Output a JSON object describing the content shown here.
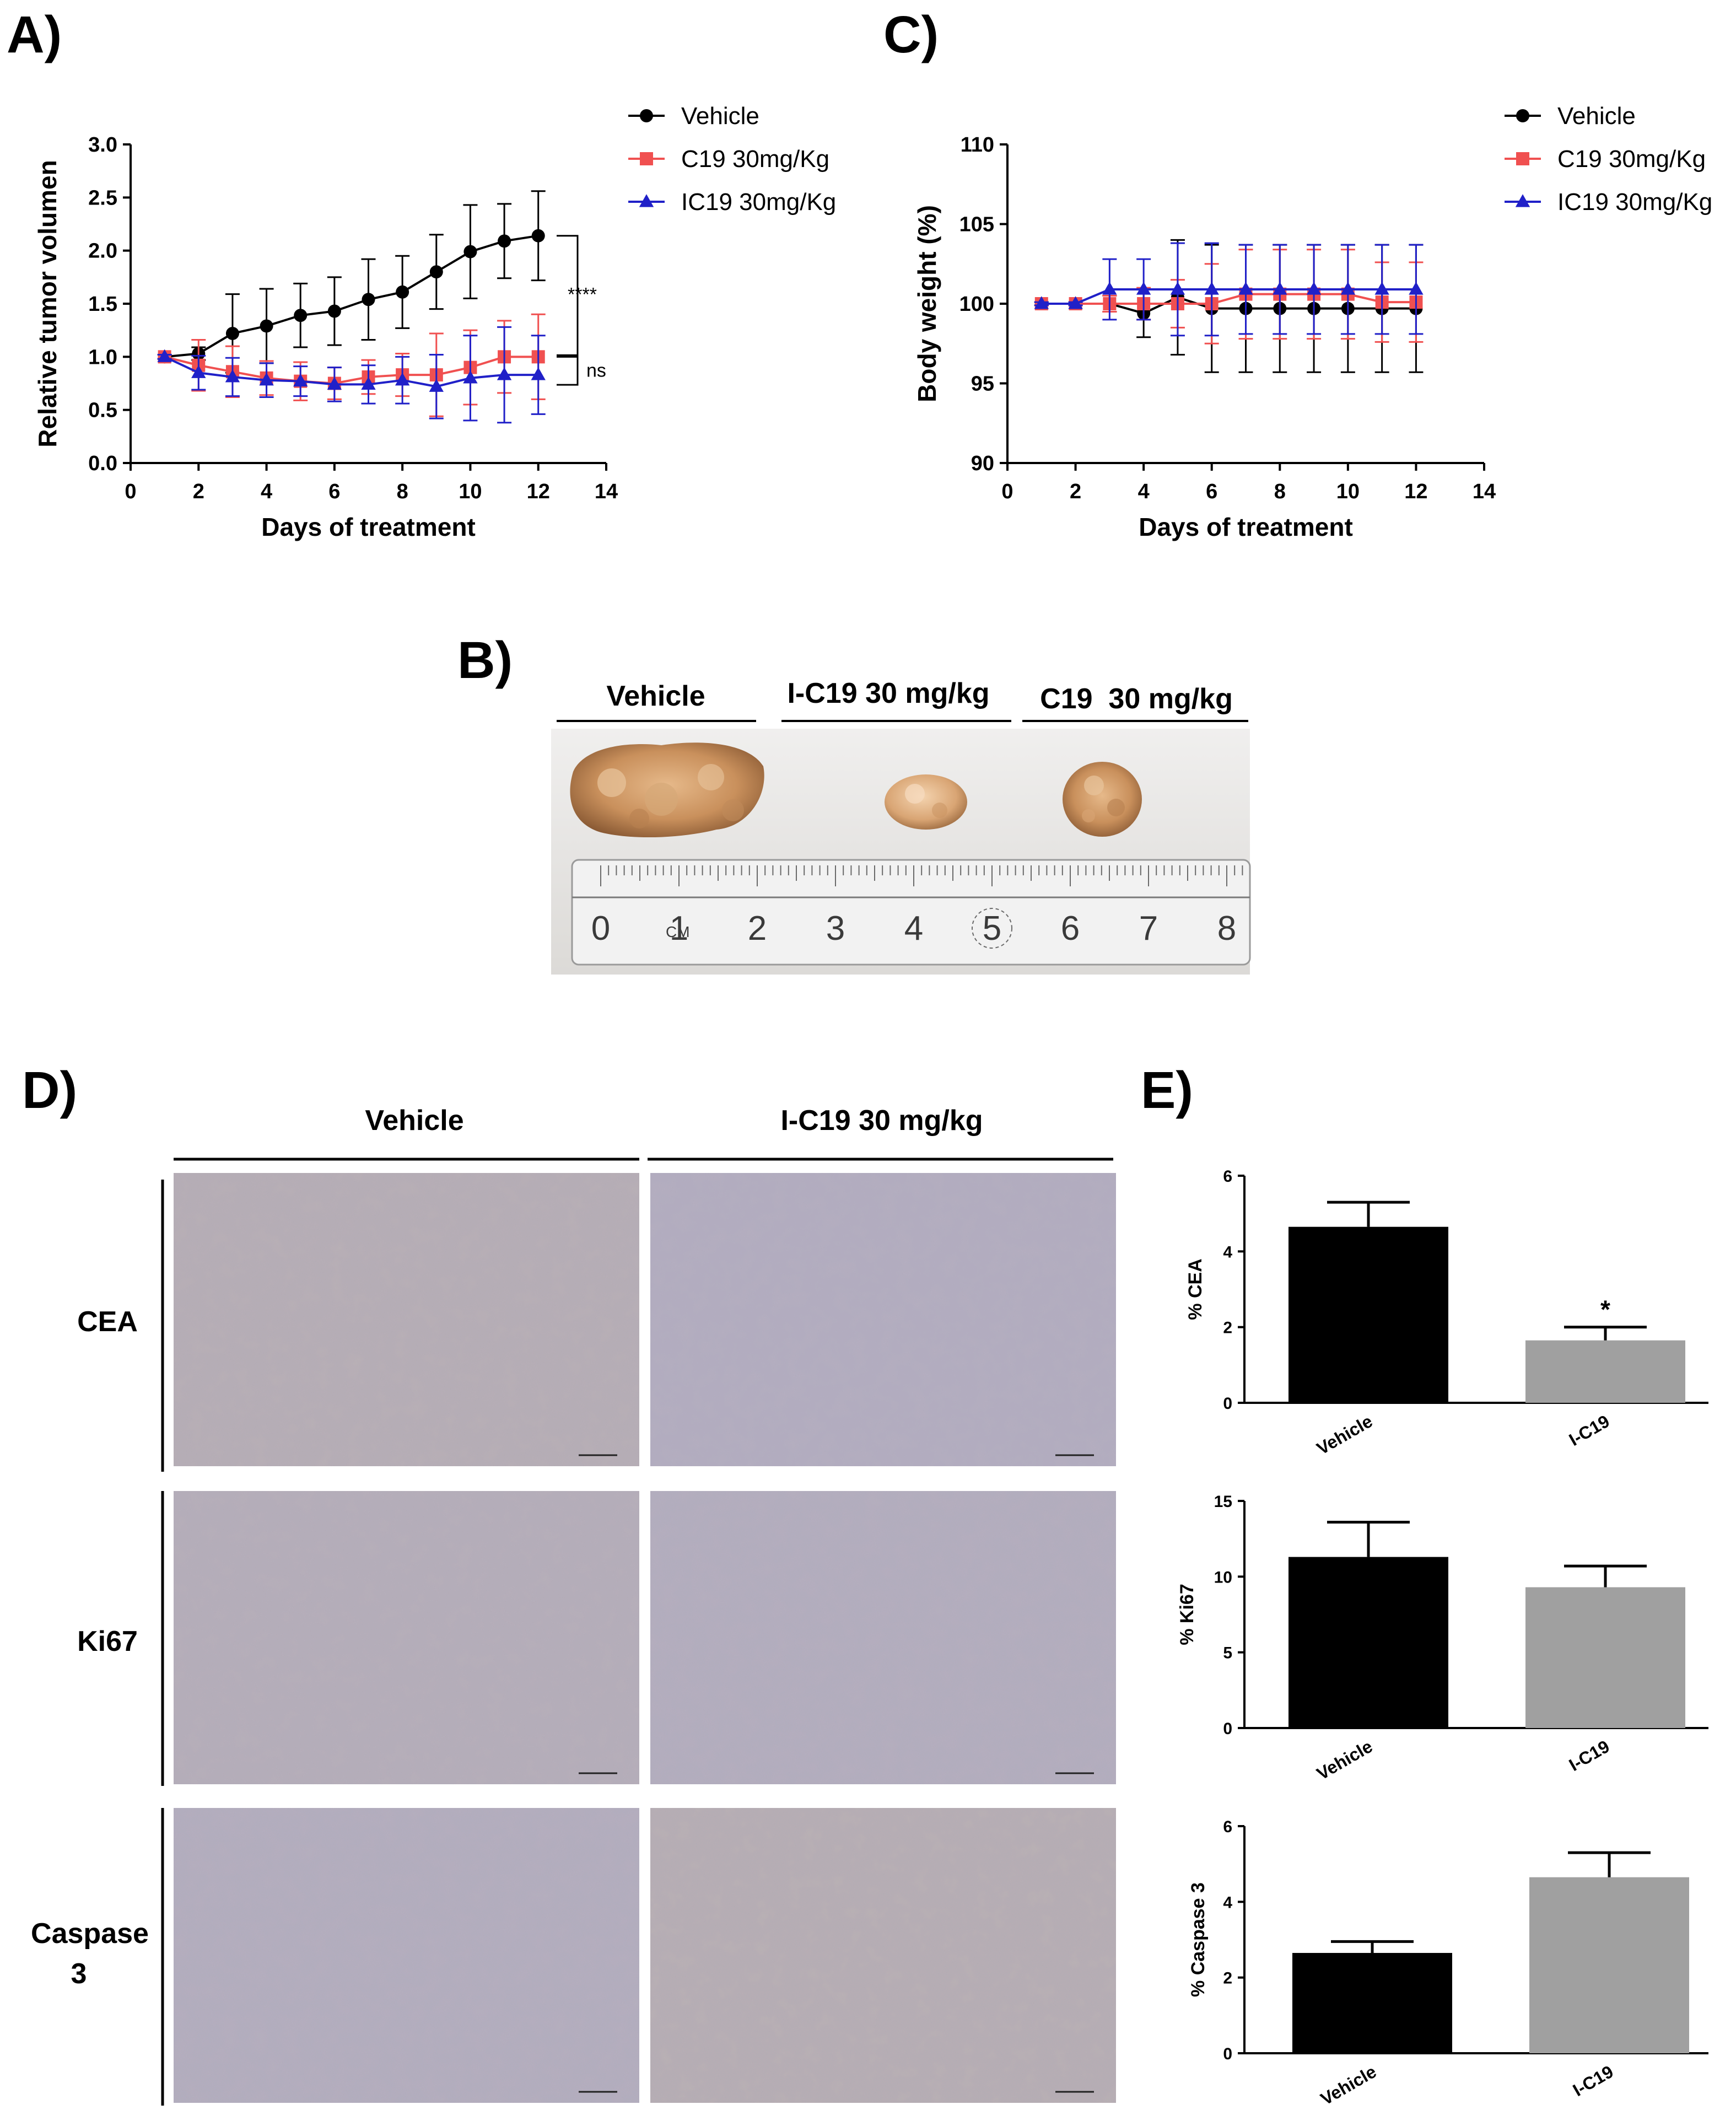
{
  "panels": {
    "a": "A)",
    "b": "B)",
    "c": "C)",
    "d": "D)",
    "e": "E)"
  },
  "colors": {
    "vehicle": "#000000",
    "c19": "#f05050",
    "ic19": "#2020c8",
    "bar_vehicle": "#000000",
    "bar_ic19": "#a0a0a0"
  },
  "photo_b": {
    "headers": [
      "Vehicle",
      "I-C19 30 mg/kg",
      "C19  30 mg/kg"
    ],
    "ruler_numbers": [
      "0",
      "1",
      "2",
      "3",
      "4",
      "5",
      "6",
      "7",
      "8"
    ],
    "ruler_unit": "CM"
  },
  "panel_d": {
    "col_headers": [
      "Vehicle",
      "I-C19 30 mg/kg"
    ],
    "row_labels": [
      "CEA",
      "Ki67",
      "Caspase",
      "3"
    ]
  },
  "chart_data": [
    {
      "id": "A",
      "type": "line",
      "xlabel": "Days of treatment",
      "ylabel": "Relative tumor volumen",
      "xlim": [
        0,
        14
      ],
      "ylim": [
        0,
        3.0
      ],
      "xticks": [
        "0",
        "2",
        "4",
        "6",
        "8",
        "10",
        "12",
        "14"
      ],
      "yticks": [
        "0.0",
        "0.5",
        "1.0",
        "1.5",
        "2.0",
        "2.5",
        "3.0"
      ],
      "legend": "top-right",
      "x": [
        1,
        2,
        3,
        4,
        5,
        6,
        7,
        8,
        9,
        10,
        11,
        12
      ],
      "series": [
        {
          "name": "Vehicle",
          "marker": "circle",
          "color": "#000000",
          "values": [
            1.0,
            1.03,
            1.22,
            1.29,
            1.39,
            1.43,
            1.54,
            1.61,
            1.8,
            1.99,
            2.09,
            2.14
          ],
          "errors": [
            0.02,
            0.06,
            0.37,
            0.35,
            0.3,
            0.32,
            0.38,
            0.34,
            0.35,
            0.44,
            0.35,
            0.42
          ]
        },
        {
          "name": "C19 30mg/Kg",
          "marker": "square",
          "color": "#f05050",
          "values": [
            1.0,
            0.92,
            0.86,
            0.8,
            0.77,
            0.75,
            0.81,
            0.83,
            0.83,
            0.9,
            1.0,
            1.0
          ],
          "errors": [
            0.02,
            0.24,
            0.24,
            0.16,
            0.18,
            0.15,
            0.16,
            0.2,
            0.39,
            0.35,
            0.34,
            0.4
          ]
        },
        {
          "name": "IC19 30mg/Kg",
          "marker": "triangle",
          "color": "#2020c8",
          "values": [
            1.0,
            0.85,
            0.81,
            0.78,
            0.77,
            0.74,
            0.74,
            0.78,
            0.72,
            0.8,
            0.83,
            0.83
          ],
          "errors": [
            0.02,
            0.16,
            0.18,
            0.16,
            0.14,
            0.16,
            0.18,
            0.22,
            0.3,
            0.4,
            0.45,
            0.37
          ]
        }
      ],
      "annotations": [
        "****",
        "ns"
      ]
    },
    {
      "id": "C",
      "type": "line",
      "xlabel": "Days of treatment",
      "ylabel": "Body weight (%)",
      "xlim": [
        0,
        14
      ],
      "ylim": [
        90,
        110
      ],
      "xticks": [
        "0",
        "2",
        "4",
        "6",
        "8",
        "10",
        "12",
        "14"
      ],
      "yticks": [
        "90",
        "95",
        "100",
        "105",
        "110"
      ],
      "legend": "top-right",
      "x": [
        1,
        2,
        3,
        4,
        5,
        6,
        7,
        8,
        9,
        10,
        11,
        12
      ],
      "series": [
        {
          "name": "Vehicle",
          "marker": "circle",
          "color": "#000000",
          "values": [
            100,
            100,
            100,
            99.4,
            100.4,
            99.7,
            99.7,
            99.7,
            99.7,
            99.7,
            99.7,
            99.7
          ],
          "errors": [
            0.1,
            0.1,
            0.5,
            1.5,
            3.6,
            4.0,
            4.0,
            4.0,
            4.0,
            4.0,
            4.0,
            4.0
          ]
        },
        {
          "name": "C19 30mg/Kg",
          "marker": "square",
          "color": "#f05050",
          "values": [
            100,
            100,
            100,
            100,
            100,
            100,
            100.6,
            100.6,
            100.6,
            100.6,
            100.1,
            100.1
          ],
          "errors": [
            0.1,
            0.1,
            0.5,
            1.0,
            1.5,
            2.5,
            2.8,
            2.8,
            2.8,
            2.8,
            2.5,
            2.5
          ]
        },
        {
          "name": "IC19 30mg/Kg",
          "marker": "triangle",
          "color": "#2020c8",
          "values": [
            100,
            100,
            100.9,
            100.9,
            100.9,
            100.9,
            100.9,
            100.9,
            100.9,
            100.9,
            100.9,
            100.9
          ],
          "errors": [
            0.1,
            0.1,
            1.9,
            1.9,
            2.9,
            2.9,
            2.8,
            2.8,
            2.8,
            2.8,
            2.8,
            2.8
          ]
        }
      ]
    },
    {
      "id": "E1",
      "type": "bar",
      "categories": [
        "Vehicle",
        "I-C19"
      ],
      "values": [
        4.65,
        1.65
      ],
      "errors": [
        0.65,
        0.35
      ],
      "ylabel": "% CEA",
      "ylim": [
        0,
        6
      ],
      "yticks": [
        "0",
        "2",
        "4",
        "6"
      ],
      "annotations": [
        "",
        "*"
      ]
    },
    {
      "id": "E2",
      "type": "bar",
      "categories": [
        "Vehicle",
        "I-C19"
      ],
      "values": [
        11.3,
        9.3
      ],
      "errors": [
        2.3,
        1.4
      ],
      "ylabel": "% Ki67",
      "ylim": [
        0,
        15
      ],
      "yticks": [
        "0",
        "5",
        "10",
        "15"
      ],
      "annotations": [
        "",
        ""
      ]
    },
    {
      "id": "E3",
      "type": "bar",
      "categories": [
        "Vehicle",
        "I-C19"
      ],
      "values": [
        2.65,
        4.65
      ],
      "errors": [
        0.3,
        0.65
      ],
      "ylabel": "% Caspase 3",
      "ylim": [
        0,
        6
      ],
      "yticks": [
        "0",
        "2",
        "4",
        "6"
      ],
      "annotations": [
        "",
        ""
      ]
    }
  ]
}
